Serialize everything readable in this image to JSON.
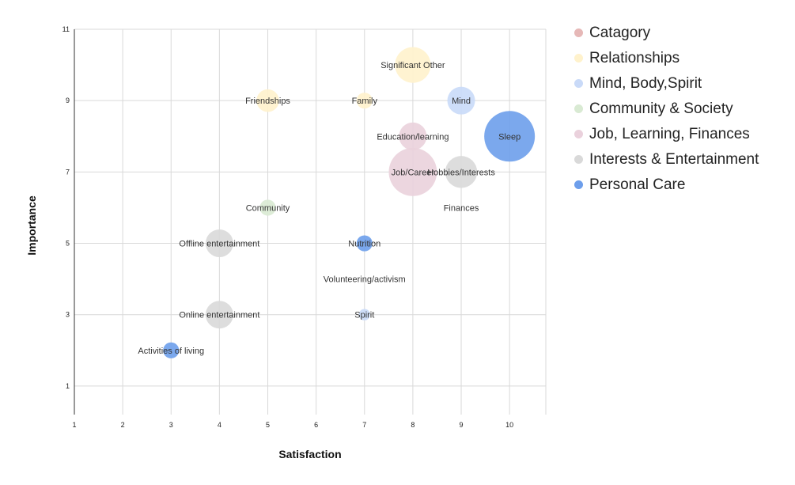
{
  "chart_data": {
    "type": "bubble",
    "title": "",
    "xlabel": "Satisfaction",
    "ylabel": "Importance",
    "xlim": [
      1,
      10.75
    ],
    "ylim": [
      0.2,
      11
    ],
    "xticks": [
      1,
      2,
      3,
      4,
      5,
      6,
      7,
      8,
      9,
      10
    ],
    "yticks": [
      1,
      3,
      5,
      7,
      9,
      11
    ],
    "grid": true,
    "legend_position": "right",
    "legend": [
      {
        "name": "Catagory",
        "color": "#e6b8b7"
      },
      {
        "name": "Relationships",
        "color": "#fff2cc"
      },
      {
        "name": "Mind, Body,Spirit",
        "color": "#c9daf8"
      },
      {
        "name": "Community & Society",
        "color": "#d9ead3"
      },
      {
        "name": "Job, Learning, Finances",
        "color": "#ead1dc"
      },
      {
        "name": "Interests & Entertainment",
        "color": "#d9d9d9"
      },
      {
        "name": "Personal Care",
        "color": "#6d9eeb"
      }
    ],
    "points": [
      {
        "label": "Significant Other",
        "x": 8,
        "y": 10,
        "size": 5,
        "category": "Relationships",
        "color": "#fff2cc"
      },
      {
        "label": "Friendships",
        "x": 5,
        "y": 9,
        "size": 2,
        "category": "Relationships",
        "color": "#fff2cc"
      },
      {
        "label": "Family",
        "x": 7,
        "y": 9,
        "size": 1,
        "category": "Relationships",
        "color": "#fff2cc"
      },
      {
        "label": "Mind",
        "x": 9,
        "y": 9,
        "size": 3,
        "category": "Mind, Body,Spirit",
        "color": "#c9daf8"
      },
      {
        "label": "Sleep",
        "x": 10,
        "y": 8,
        "size": 10,
        "category": "Personal Care",
        "color": "#6d9eeb"
      },
      {
        "label": "Education/learning",
        "x": 8,
        "y": 8,
        "size": 3,
        "category": "Job, Learning, Finances",
        "color": "#ead1dc"
      },
      {
        "label": "Job/Career",
        "x": 8,
        "y": 7,
        "size": 9,
        "category": "Job, Learning, Finances",
        "color": "#ead1dc"
      },
      {
        "label": "Hobbies/Interests",
        "x": 9,
        "y": 7,
        "size": 4,
        "category": "Interests & Entertainment",
        "color": "#d9d9d9"
      },
      {
        "label": "Community",
        "x": 5,
        "y": 6,
        "size": 1,
        "category": "Community & Society",
        "color": "#d9ead3"
      },
      {
        "label": "Finances",
        "x": 9,
        "y": 6,
        "size": 0,
        "category": "Job, Learning, Finances",
        "color": "#ead1dc"
      },
      {
        "label": "Offline entertainment",
        "x": 4,
        "y": 5,
        "size": 3,
        "category": "Interests & Entertainment",
        "color": "#d9d9d9"
      },
      {
        "label": "Nutrition",
        "x": 7,
        "y": 5,
        "size": 1,
        "category": "Personal Care",
        "color": "#6d9eeb"
      },
      {
        "label": "Volunteering/activism",
        "x": 7,
        "y": 4,
        "size": 0,
        "category": "Community & Society",
        "color": "#d9ead3"
      },
      {
        "label": "Online entertainment",
        "x": 4,
        "y": 3,
        "size": 3,
        "category": "Interests & Entertainment",
        "color": "#d9d9d9"
      },
      {
        "label": "Spirit",
        "x": 7,
        "y": 3,
        "size": 0.5,
        "category": "Mind, Body,Spirit",
        "color": "#c9daf8"
      },
      {
        "label": "Activities of living",
        "x": 3,
        "y": 2,
        "size": 1,
        "category": "Personal Care",
        "color": "#6d9eeb"
      }
    ]
  }
}
